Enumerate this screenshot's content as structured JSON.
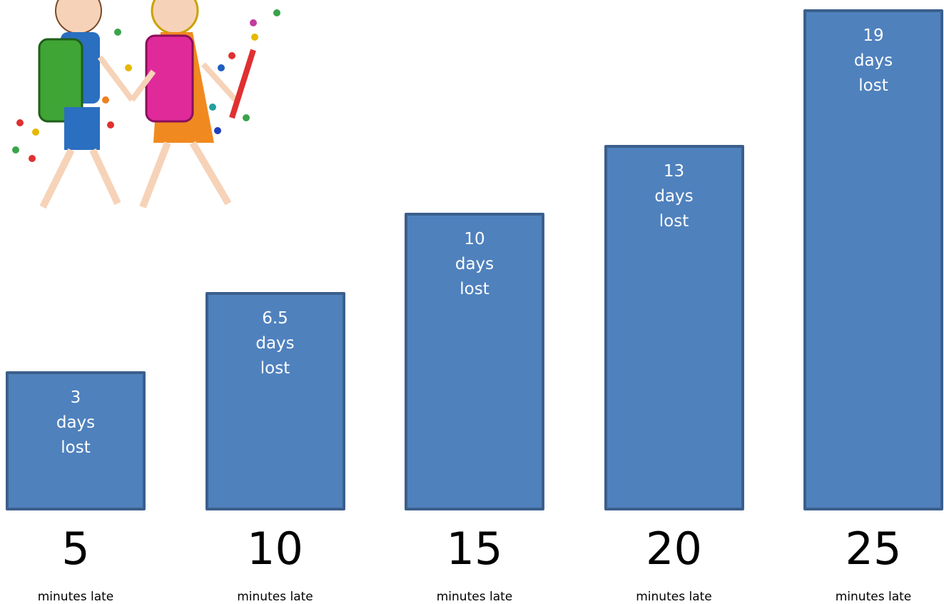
{
  "chart_data": {
    "type": "bar",
    "categories": [
      "5",
      "10",
      "15",
      "20",
      "25"
    ],
    "values": [
      3,
      6.5,
      10,
      13,
      19
    ],
    "value_labels": [
      "3 days lost",
      "6.5 days lost",
      "10 days lost",
      "13 days lost",
      "19 days lost"
    ],
    "x_sublabel": "minutes late",
    "color": "#4f81bd"
  }
}
